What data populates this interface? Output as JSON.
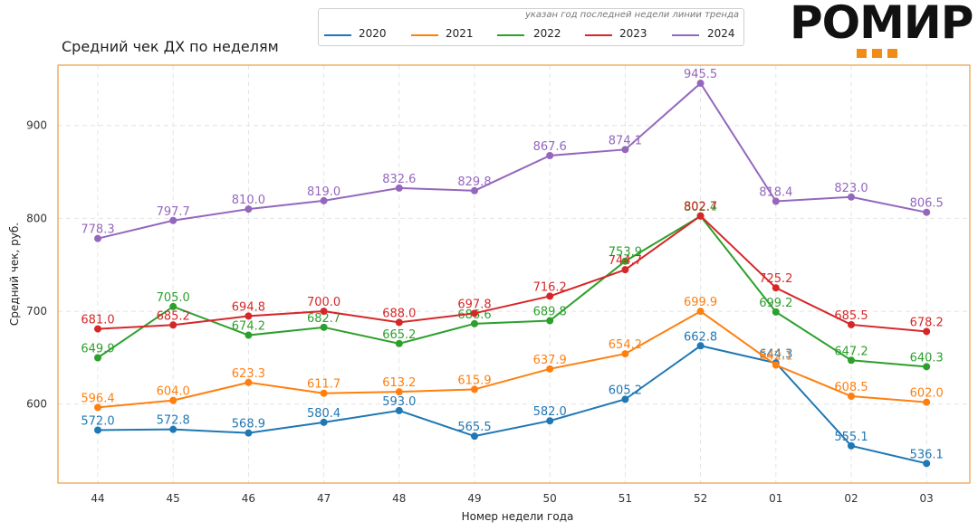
{
  "colors": {
    "2020": "#1f77b4",
    "2021": "#ff7f0e",
    "2022": "#2ca02c",
    "2023": "#d62728",
    "2024": "#9467bd",
    "frame": "#e8891c",
    "logo_accent": "#f28c18"
  },
  "logo": {
    "text": "РОМИР"
  },
  "legend": {
    "note": "указан год последней недели линии тренда"
  },
  "chart_data": {
    "type": "line",
    "title": "Средний чек ДХ по неделям",
    "xlabel": "Номер недели года",
    "ylabel": "Средний чек, руб.",
    "categories": [
      "44",
      "45",
      "46",
      "47",
      "48",
      "49",
      "50",
      "51",
      "52",
      "01",
      "02",
      "03"
    ],
    "ylim": [
      515,
      965
    ],
    "yticks": [
      600,
      700,
      800,
      900
    ],
    "grid": true,
    "legend_position": "top",
    "series": [
      {
        "name": "2020",
        "values": [
          572.0,
          572.8,
          568.9,
          580.4,
          593.0,
          565.5,
          582.0,
          605.2,
          662.8,
          644.3,
          555.1,
          536.1
        ],
        "labels": [
          "572.0",
          "572.8",
          "568.9",
          "580.4",
          "593.0",
          "565.5",
          "582.0",
          "605.2",
          "662.8",
          "644.3",
          "555.1",
          "536.1"
        ]
      },
      {
        "name": "2021",
        "values": [
          596.4,
          604.0,
          623.3,
          611.7,
          613.2,
          615.9,
          637.9,
          654.2,
          699.9,
          642.1,
          608.5,
          602.0
        ],
        "labels": [
          "596.4",
          "604.0",
          "623.3",
          "611.7",
          "613.2",
          "615.9",
          "637.9",
          "654.2",
          "699.9",
          "642.1",
          "608.5",
          "602.0"
        ]
      },
      {
        "name": "2022",
        "values": [
          649.9,
          705.0,
          674.2,
          682.7,
          665.2,
          686.6,
          689.8,
          753.9,
          802.4,
          699.2,
          647.2,
          640.3
        ],
        "labels": [
          "649.9",
          "705.0",
          "674.2",
          "682.7",
          "665.2",
          "686.6",
          "689.8",
          "753.9",
          "802.4",
          "699.2",
          "647.2",
          "640.3"
        ]
      },
      {
        "name": "2023",
        "values": [
          681.0,
          685.2,
          694.8,
          700.0,
          688.0,
          697.8,
          716.2,
          744.7,
          802.7,
          725.2,
          685.5,
          678.2
        ],
        "labels": [
          "681.0",
          "685.2",
          "694.8",
          "700.0",
          "688.0",
          "697.8",
          "716.2",
          "744.7",
          "802.7",
          "725.2",
          "685.5",
          "678.2"
        ]
      },
      {
        "name": "2024",
        "values": [
          778.3,
          797.7,
          810.0,
          819.0,
          832.6,
          829.8,
          867.6,
          874.1,
          945.5,
          818.4,
          823.0,
          806.5
        ],
        "labels": [
          "778.3",
          "797.7",
          "810.0",
          "819.0",
          "832.6",
          "829.8",
          "867.6",
          "874.1",
          "945.5",
          "818.4",
          "823.0",
          "806.5"
        ]
      }
    ]
  }
}
